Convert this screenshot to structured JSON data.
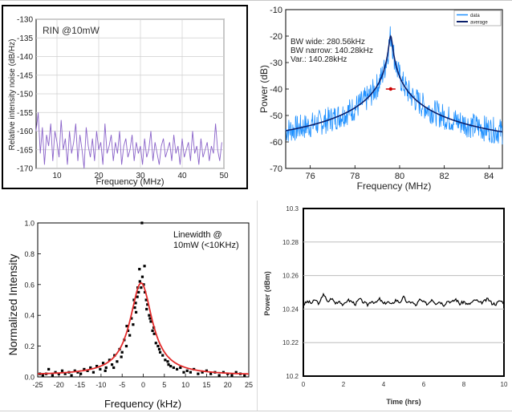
{
  "chart_data": [
    {
      "type": "line",
      "annotation": "RIN @10mW",
      "xlabel": "Frequency (MHz)",
      "ylabel": "Relative intensity noise (dB/Hz)",
      "xlim": [
        5,
        50
      ],
      "ylim": [
        -170,
        -130
      ],
      "xticks": [
        10,
        20,
        30,
        40,
        50
      ],
      "yticks": [
        -130,
        -135,
        -140,
        -145,
        -150,
        -155,
        -160,
        -165,
        -170
      ],
      "grid": true,
      "color": "#8a63c9",
      "series": [
        {
          "x": [
            5,
            5.5,
            6,
            6.5,
            7,
            7.5,
            8,
            8.5,
            9,
            9.5,
            10,
            10.5,
            11,
            11.5,
            12,
            12.5,
            13,
            13.5,
            14,
            14.5,
            15,
            15.5,
            16,
            16.5,
            17,
            17.5,
            18,
            18.5,
            19,
            19.5,
            20,
            20.5,
            21,
            21.5,
            22,
            22.5,
            23,
            23.5,
            24,
            24.5,
            25,
            25.5,
            26,
            26.5,
            27,
            27.5,
            28,
            28.5,
            29,
            29.5,
            30,
            30.5,
            31,
            31.5,
            32,
            32.5,
            33,
            33.5,
            34,
            34.5,
            35,
            35.5,
            36,
            36.5,
            37,
            37.5,
            38,
            38.5,
            39,
            39.5,
            40,
            40.5,
            41,
            41.5,
            42,
            42.5,
            43,
            43.5,
            44,
            44.5,
            45,
            45.5,
            46,
            46.5,
            47,
            47.5,
            48,
            48.5,
            49,
            49.5
          ],
          "y": [
            -160,
            -155,
            -166,
            -159,
            -169,
            -161,
            -164,
            -158,
            -168,
            -160,
            -163,
            -167,
            -157,
            -165,
            -162,
            -169,
            -160,
            -166,
            -163,
            -158,
            -168,
            -161,
            -165,
            -170,
            -159,
            -164,
            -167,
            -162,
            -168,
            -160,
            -165,
            -163,
            -169,
            -158,
            -166,
            -164,
            -161,
            -168,
            -163,
            -166,
            -160,
            -169,
            -164,
            -162,
            -167,
            -165,
            -161,
            -168,
            -163,
            -166,
            -164,
            -169,
            -162,
            -167,
            -165,
            -160,
            -168,
            -163,
            -166,
            -169,
            -164,
            -162,
            -167,
            -165,
            -163,
            -168,
            -161,
            -166,
            -164,
            -169,
            -162,
            -167,
            -165,
            -163,
            -168,
            -160,
            -166,
            -164,
            -169,
            -162,
            -167,
            -165,
            -163,
            -168,
            -164,
            -166,
            -158,
            -165,
            -168,
            -163
          ]
        }
      ]
    },
    {
      "type": "line",
      "xlabel": "Frequency (MHz)",
      "ylabel": "Power (dB)",
      "xlim": [
        74.9,
        84.6
      ],
      "ylim": [
        -70,
        -10
      ],
      "xticks": [
        76,
        78,
        80,
        82,
        84
      ],
      "yticks": [
        -10,
        -20,
        -30,
        -40,
        -50,
        -60,
        -70
      ],
      "grid": false,
      "annotations": [
        "BW wide: 280.56kHz",
        "BW narrow: 140.28kHz",
        "Var.: 140.28kHz"
      ],
      "legend_position": "top-right",
      "series": [
        {
          "name": "data",
          "color": "#1e90ff",
          "kind": "noisy-lorentzian",
          "center": 79.6,
          "floor": -63,
          "peak": -20,
          "spread": 5
        },
        {
          "name": "average",
          "color": "#0a1f6b",
          "kind": "lorentzian",
          "center": 79.6,
          "floor": -63.5,
          "peak": -20
        }
      ],
      "marker": {
        "x": 79.6,
        "y": -40,
        "color": "#cc0000"
      }
    },
    {
      "type": "scatter",
      "annotation_lines": [
        "Linewidth @",
        "10mW (<10KHz)"
      ],
      "xlabel": "Frequency (kHz)",
      "ylabel": "Normalized Intensity",
      "xlim": [
        -25,
        25
      ],
      "ylim": [
        0,
        1.0
      ],
      "xticks": [
        -25,
        -20,
        -15,
        -10,
        -5,
        0,
        5,
        10,
        15,
        20,
        25
      ],
      "yticks": [
        0.0,
        0.2,
        0.4,
        0.6,
        0.8,
        1.0
      ],
      "grid": false,
      "points_color": "#000000",
      "fit_color": "#e32b2b",
      "fit": {
        "center": -0.5,
        "gamma": 3.2,
        "amplitude": 0.6,
        "offset": 0.01
      },
      "points": [
        [
          -24.5,
          0.02
        ],
        [
          -23.8,
          0.01
        ],
        [
          -23,
          0.02
        ],
        [
          -22.4,
          0.05
        ],
        [
          -21.5,
          0.01
        ],
        [
          -20.8,
          0.03
        ],
        [
          -20,
          0.02
        ],
        [
          -19.2,
          0.04
        ],
        [
          -18.5,
          0.02
        ],
        [
          -17.6,
          0.03
        ],
        [
          -17,
          0.01
        ],
        [
          -16.2,
          0.04
        ],
        [
          -15.5,
          0.03
        ],
        [
          -14.8,
          0.02
        ],
        [
          -14,
          0.05
        ],
        [
          -13.2,
          0.04
        ],
        [
          -12.5,
          0.06
        ],
        [
          -11.8,
          0.03
        ],
        [
          -11,
          0.07
        ],
        [
          -10.2,
          0.05
        ],
        [
          -9.5,
          0.09
        ],
        [
          -8.8,
          0.06
        ],
        [
          -8,
          0.11
        ],
        [
          -7.4,
          0.08
        ],
        [
          -6.8,
          0.14
        ],
        [
          -6.2,
          0.1
        ],
        [
          -5.6,
          0.18
        ],
        [
          -5,
          0.16
        ],
        [
          -4.5,
          0.24
        ],
        [
          -4,
          0.2
        ],
        [
          -3.6,
          0.3
        ],
        [
          -3.2,
          0.27
        ],
        [
          -2.8,
          0.38
        ],
        [
          -2.4,
          0.34
        ],
        [
          -2,
          0.45
        ],
        [
          -1.7,
          0.42
        ],
        [
          -1.4,
          0.52
        ],
        [
          -1.1,
          0.55
        ],
        [
          -0.8,
          0.62
        ],
        [
          -0.5,
          0.58
        ],
        [
          -0.2,
          0.65
        ],
        [
          0.1,
          0.6
        ],
        [
          0.4,
          0.55
        ],
        [
          0.7,
          0.5
        ],
        [
          1,
          0.47
        ],
        [
          1.4,
          0.4
        ],
        [
          1.8,
          0.36
        ],
        [
          2.2,
          0.3
        ],
        [
          2.6,
          0.28
        ],
        [
          3,
          0.22
        ],
        [
          3.5,
          0.2
        ],
        [
          4,
          0.16
        ],
        [
          4.6,
          0.14
        ],
        [
          5.2,
          0.11
        ],
        [
          5.8,
          0.1
        ],
        [
          6.5,
          0.07
        ],
        [
          7.2,
          0.06
        ],
        [
          8,
          0.05
        ],
        [
          8.8,
          0.06
        ],
        [
          9.6,
          0.03
        ],
        [
          10.4,
          0.04
        ],
        [
          11.2,
          0.03
        ],
        [
          12,
          0.05
        ],
        [
          13,
          0.02
        ],
        [
          14,
          0.03
        ],
        [
          15,
          0.04
        ],
        [
          16,
          0.02
        ],
        [
          17,
          0.03
        ],
        [
          18,
          0.01
        ],
        [
          19,
          0.03
        ],
        [
          20,
          0.02
        ],
        [
          21,
          0.01
        ],
        [
          22,
          0.03
        ],
        [
          23,
          0.02
        ],
        [
          24,
          0.01
        ],
        [
          -3.9,
          0.33
        ],
        [
          -2.2,
          0.5
        ],
        [
          -0.9,
          0.7
        ],
        [
          0.3,
          0.72
        ],
        [
          -1.3,
          0.58
        ],
        [
          1.6,
          0.38
        ],
        [
          -0.3,
          1.0
        ],
        [
          2.5,
          0.32
        ],
        [
          -5.2,
          0.13
        ],
        [
          3.8,
          0.18
        ],
        [
          -7,
          0.06
        ],
        [
          6,
          0.08
        ],
        [
          -9,
          0.04
        ],
        [
          -1.8,
          0.48
        ],
        [
          0.8,
          0.44
        ]
      ]
    },
    {
      "type": "line",
      "xlabel": "Time (hrs)",
      "ylabel": "Power (dBm)",
      "xlim": [
        0,
        10
      ],
      "ylim": [
        10.2,
        10.3
      ],
      "xticks": [
        0,
        2,
        4,
        6,
        8,
        10
      ],
      "yticks": [
        10.3,
        10.28,
        10.26,
        10.24,
        10.22,
        10.2
      ],
      "ytick_labels": [
        "10.3",
        "10.28",
        "10.26",
        "10.24",
        "10.22",
        "10.2"
      ],
      "grid": true,
      "series": [
        {
          "color": "#000000",
          "x": [
            0,
            0.2,
            0.4,
            0.6,
            0.8,
            1.0,
            1.2,
            1.4,
            1.6,
            1.8,
            2.0,
            2.2,
            2.4,
            2.6,
            2.8,
            3.0,
            3.2,
            3.4,
            3.6,
            3.8,
            4.0,
            4.2,
            4.4,
            4.6,
            4.8,
            5.0,
            5.2,
            5.4,
            5.6,
            5.8,
            6.0,
            6.2,
            6.4,
            6.6,
            6.8,
            7.0,
            7.2,
            7.4,
            7.6,
            7.8,
            8.0,
            8.2,
            8.4,
            8.6,
            8.8,
            9.0,
            9.2,
            9.4,
            9.6,
            9.8,
            10.0
          ],
          "y": [
            10.2425,
            10.2445,
            10.2435,
            10.2455,
            10.243,
            10.2495,
            10.244,
            10.2465,
            10.2435,
            10.245,
            10.242,
            10.2455,
            10.2445,
            10.243,
            10.246,
            10.244,
            10.2425,
            10.245,
            10.2435,
            10.246,
            10.243,
            10.2445,
            10.2425,
            10.2455,
            10.244,
            10.247,
            10.2435,
            10.2445,
            10.242,
            10.2455,
            10.244,
            10.243,
            10.246,
            10.2435,
            10.2445,
            10.2425,
            10.245,
            10.244,
            10.246,
            10.243,
            10.2445,
            10.2425,
            10.244,
            10.2455,
            10.2435,
            10.2445,
            10.246,
            10.2435,
            10.243,
            10.245,
            10.244
          ]
        }
      ]
    }
  ]
}
